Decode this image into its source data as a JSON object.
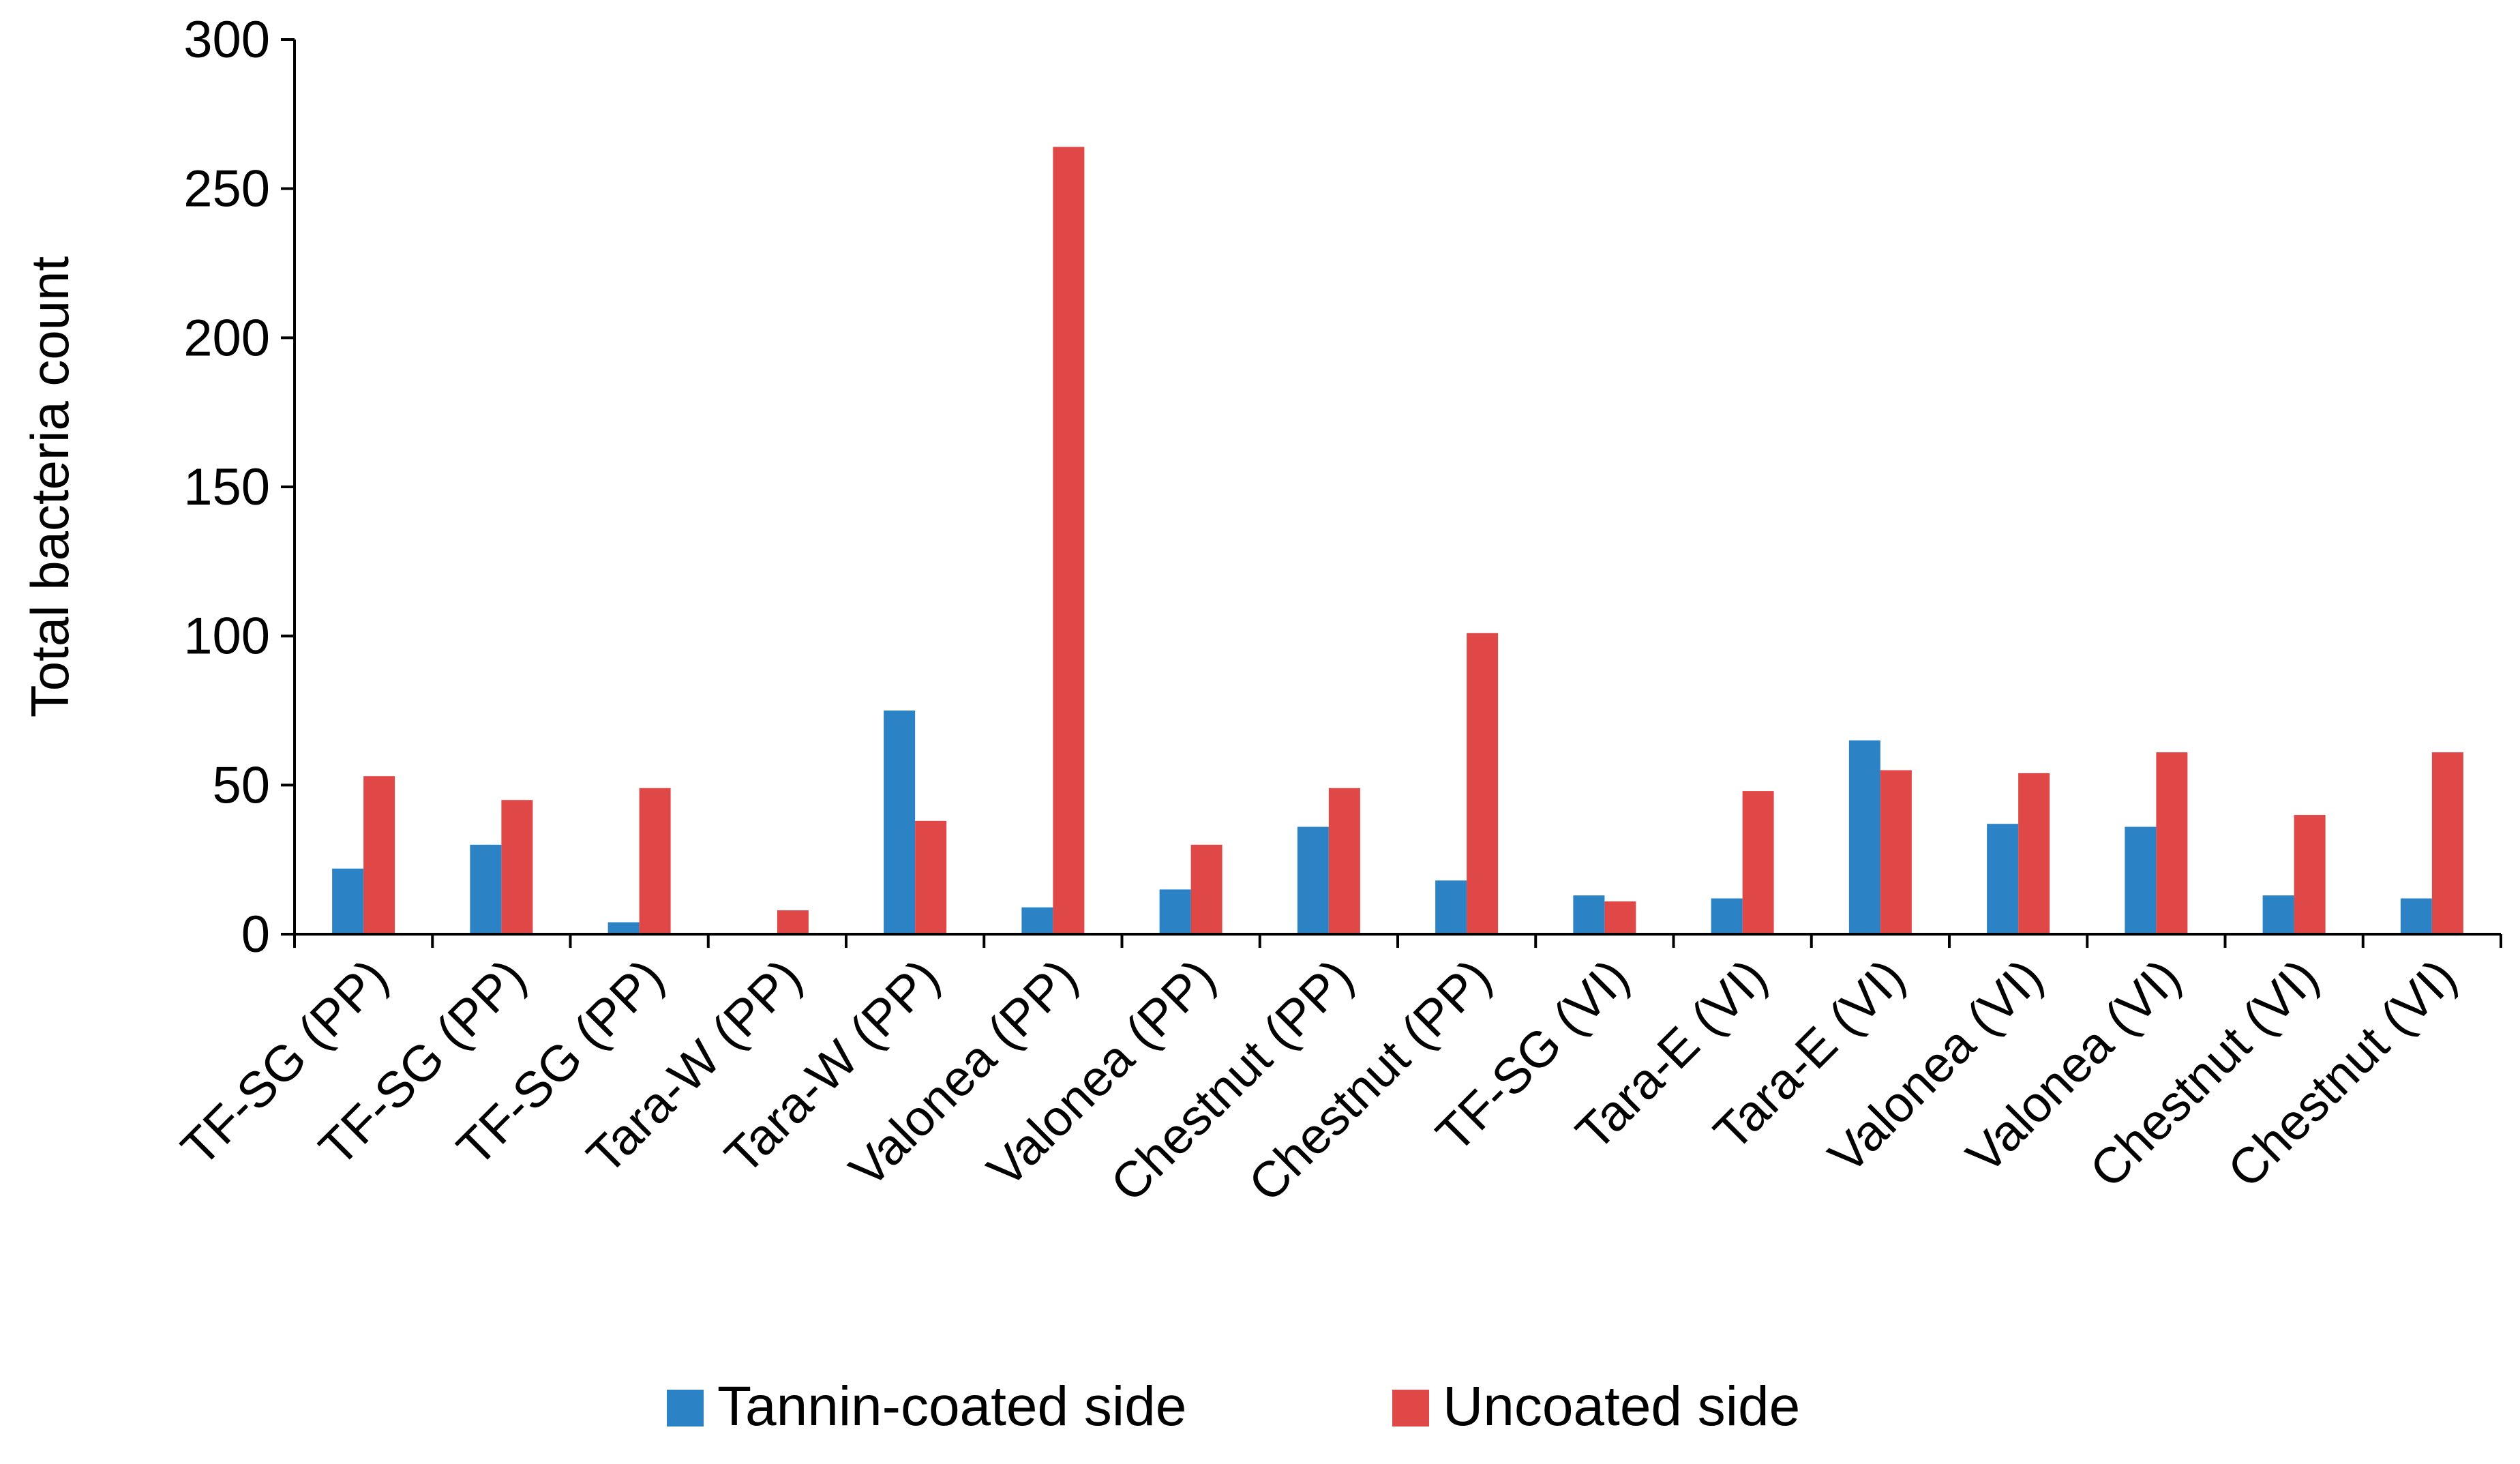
{
  "chart_data": {
    "type": "bar",
    "title": "",
    "xlabel": "",
    "ylabel": "Total bacteria count",
    "ylim": [
      0,
      300
    ],
    "yticks": [
      0,
      50,
      100,
      150,
      200,
      250,
      300
    ],
    "grid": false,
    "legend_position": "bottom",
    "categories": [
      "TF-SG (PP)",
      "TF-SG (PP)",
      "TF-SG (PP)",
      "Tara-W (PP)",
      "Tara-W (PP)",
      "Valonea (PP)",
      "Valonea (PP)",
      "Chestnut (PP)",
      "Chestnut (PP)",
      "TF-SG (VI)",
      "Tara-E (VI)",
      "Tara-E (VI)",
      "Valonea (VI)",
      "Valonea (VI)",
      "Chestnut (VI)",
      "Chestnut (VI)"
    ],
    "series": [
      {
        "name": "Tannin-coated side",
        "color": "#2b83c6",
        "values": [
          22,
          30,
          4,
          0,
          75,
          9,
          15,
          36,
          18,
          13,
          12,
          65,
          37,
          36,
          13,
          12
        ]
      },
      {
        "name": "Uncoated side",
        "color": "#e04848",
        "values": [
          53,
          45,
          49,
          8,
          38,
          264,
          30,
          49,
          101,
          11,
          48,
          55,
          54,
          61,
          40,
          61
        ]
      }
    ]
  }
}
